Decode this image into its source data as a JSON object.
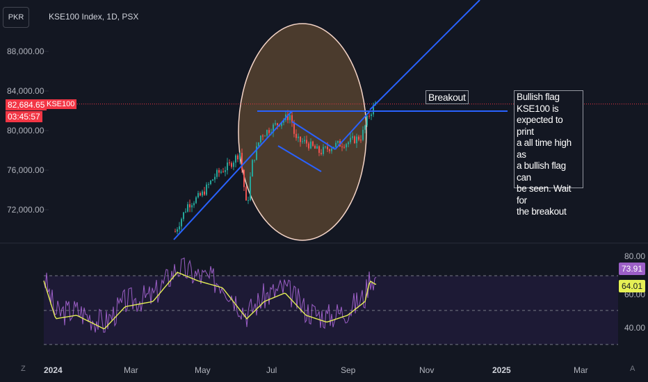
{
  "header": {
    "currency": "PKR",
    "symbol": "KSE100 Index, 1D, PSX"
  },
  "price_axis": [
    "88,000.00",
    "84,000.00",
    "80,000.00",
    "76,000.00",
    "72,000.00"
  ],
  "price_tag": {
    "value": "82,684.65",
    "countdown": "03:45:57",
    "symbol": "KSE100"
  },
  "annotations": {
    "breakout": "Breakout",
    "note_lines": [
      "Bullish flag",
      "KSE100 is",
      "expected to print",
      "a all time high as",
      "a bullish flag can",
      "be seen. Wait for",
      "the breakout"
    ]
  },
  "rsi": {
    "value": "73.91",
    "ma": "64.01",
    "labels": [
      "80.00",
      "60.00",
      "40.00"
    ],
    "colors": {
      "rsi": "#9c5fc7",
      "ma": "#e6f055"
    }
  },
  "x_axis": [
    "2024",
    "Mar",
    "May",
    "Jul",
    "Sep",
    "Nov",
    "2025",
    "Mar"
  ],
  "corner": {
    "left": "Z",
    "right": "A"
  },
  "chart_data": {
    "type": "candlestick",
    "ylabel": "",
    "ylim": [
      69000,
      91000
    ],
    "approx_close_path": [
      {
        "x": "Apr 25",
        "y": 69500
      },
      {
        "x": "May 20",
        "y": 75500
      },
      {
        "x": "Jun 10",
        "y": 77800
      },
      {
        "x": "Jun 14",
        "y": 72000
      },
      {
        "x": "Jun 25",
        "y": 78000
      },
      {
        "x": "Jul 10",
        "y": 81500
      },
      {
        "x": "Jul 22",
        "y": 78500
      },
      {
        "x": "Aug 15",
        "y": 78000
      },
      {
        "x": "Sep 10",
        "y": 79000
      },
      {
        "x": "Sep 18",
        "y": 82700
      }
    ],
    "horizontal_line": 81800,
    "current_price": 82684.65
  }
}
